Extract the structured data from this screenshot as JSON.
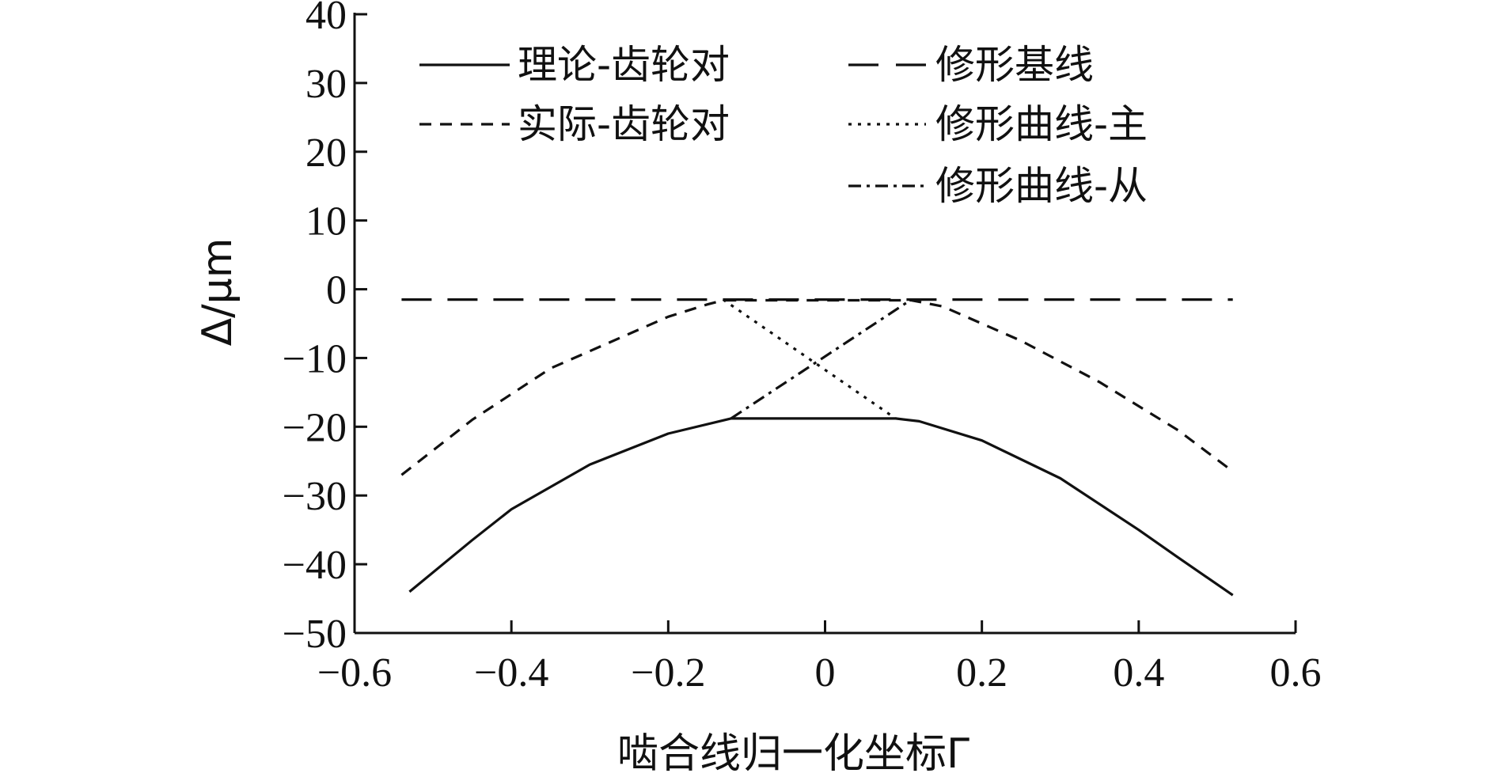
{
  "chart_data": {
    "type": "line",
    "xlabel": "啮合线归一化坐标Γ",
    "ylabel": "Δ/μm",
    "xlim": [
      -0.6,
      0.6
    ],
    "ylim": [
      -50,
      40
    ],
    "xticks": [
      -0.6,
      -0.4,
      -0.2,
      0,
      0.2,
      0.4,
      0.6
    ],
    "yticks": [
      -50,
      -40,
      -30,
      -20,
      -10,
      0,
      10,
      20,
      30,
      40
    ],
    "xtick_labels": [
      "−0.6",
      "−0.4",
      "−0.2",
      "0",
      "0.2",
      "0.4",
      "0.6"
    ],
    "ytick_labels": [
      "−50",
      "−40",
      "−30",
      "−20",
      "−10",
      "0",
      "10",
      "20",
      "30",
      "40"
    ],
    "grid": false,
    "legend_position": "top",
    "series": [
      {
        "name": "理论-齿轮对",
        "style": "solid",
        "points": [
          [
            -0.53,
            -44
          ],
          [
            -0.45,
            -36.5
          ],
          [
            -0.4,
            -32
          ],
          [
            -0.3,
            -25.5
          ],
          [
            -0.2,
            -21
          ],
          [
            -0.12,
            -18.8
          ],
          [
            0.09,
            -18.8
          ],
          [
            0.12,
            -19.2
          ],
          [
            0.2,
            -22
          ],
          [
            0.3,
            -27.5
          ],
          [
            0.4,
            -35
          ],
          [
            0.45,
            -39
          ],
          [
            0.52,
            -44.5
          ]
        ]
      },
      {
        "name": "实际-齿轮对",
        "style": "dashed",
        "points": [
          [
            -0.54,
            -27
          ],
          [
            -0.45,
            -19
          ],
          [
            -0.35,
            -11.5
          ],
          [
            -0.25,
            -6.5
          ],
          [
            -0.2,
            -4
          ],
          [
            -0.15,
            -2.2
          ],
          [
            -0.13,
            -1.6
          ],
          [
            0.11,
            -1.6
          ],
          [
            0.15,
            -2.5
          ],
          [
            0.25,
            -7.5
          ],
          [
            0.35,
            -13.5
          ],
          [
            0.45,
            -20.5
          ],
          [
            0.52,
            -26.5
          ]
        ]
      },
      {
        "name": "修形基线",
        "style": "long-dash",
        "points": [
          [
            -0.54,
            -1.5
          ],
          [
            0.52,
            -1.5
          ]
        ]
      },
      {
        "name": "修形曲线-主",
        "style": "dotted",
        "points": [
          [
            -0.13,
            -1.5
          ],
          [
            0.09,
            -18.8
          ]
        ]
      },
      {
        "name": "修形曲线-从",
        "style": "dash-dot",
        "points": [
          [
            -0.12,
            -18.8
          ],
          [
            0.11,
            -1.5
          ]
        ]
      }
    ]
  }
}
